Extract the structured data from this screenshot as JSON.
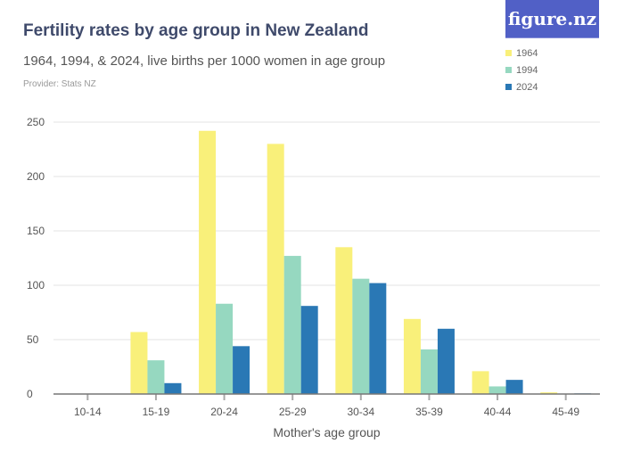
{
  "header": {
    "title": "Fertility rates by age group in New Zealand",
    "subtitle": "1964, 1994, & 2024, live births per 1000 women in age group",
    "provider": "Provider: Stats NZ",
    "logo": "figure.nz"
  },
  "chart_data": {
    "type": "bar",
    "title": "Fertility rates by age group in New Zealand",
    "xlabel": "Mother's age group",
    "ylabel": "",
    "ylim": [
      0,
      250
    ],
    "yticks": [
      0,
      50,
      100,
      150,
      200,
      250
    ],
    "grid": true,
    "legend_position": "top-right",
    "categories": [
      "10-14",
      "15-19",
      "20-24",
      "25-29",
      "30-34",
      "35-39",
      "40-44",
      "45-49"
    ],
    "series": [
      {
        "name": "1964",
        "color": "#f9f07a",
        "values": [
          0.2,
          57,
          242,
          230,
          135,
          69,
          21,
          1.5
        ]
      },
      {
        "name": "1994",
        "color": "#96d8c0",
        "values": [
          0.1,
          31,
          83,
          127,
          106,
          41,
          7,
          0.4
        ]
      },
      {
        "name": "2024",
        "color": "#2a78b5",
        "values": [
          0.1,
          10,
          44,
          81,
          102,
          60,
          13,
          0.6
        ]
      }
    ]
  }
}
